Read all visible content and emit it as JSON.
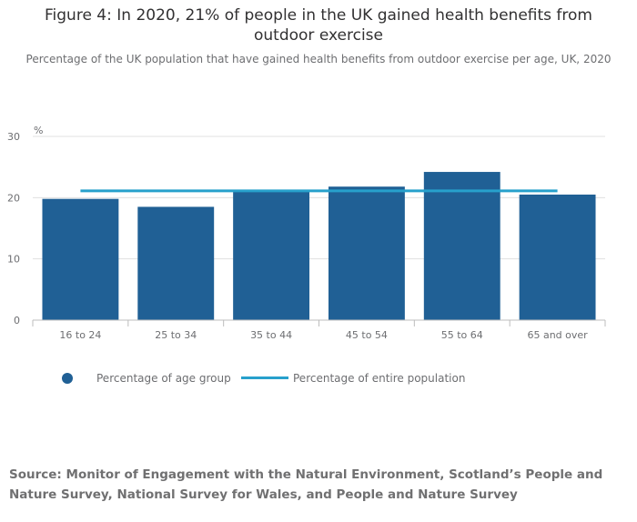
{
  "colors": {
    "bar": "#206095",
    "population_line": "#27a0cc",
    "grid": "#e0e0e0",
    "axis_text": "#6d6e71"
  },
  "chart_data": {
    "type": "bar",
    "title": "Figure 4: In 2020, 21% of people in the UK gained health benefits from outdoor exercise",
    "subtitle": "Percentage of the UK population that have gained health benefits from outdoor exercise per age, UK, 2020",
    "categories": [
      "16 to 24",
      "25 to 34",
      "35 to 44",
      "45 to 54",
      "55 to 64",
      "65 and over"
    ],
    "series": [
      {
        "name": "Percentage of age group",
        "values": [
          19.8,
          18.5,
          21.1,
          21.8,
          24.2,
          20.5
        ]
      }
    ],
    "reference_line": {
      "name": "Percentage of entire population",
      "value": 21.1
    },
    "ylabel": "%",
    "ylim": [
      0,
      30
    ],
    "yticks": [
      "0",
      "10",
      "20",
      "30"
    ],
    "grid": true,
    "legend_position": "bottom-left"
  },
  "source": "Source: Monitor of Engagement with the Natural Environment, Scotland’s People and Nature Survey, National Survey for Wales, and People and Nature Survey"
}
